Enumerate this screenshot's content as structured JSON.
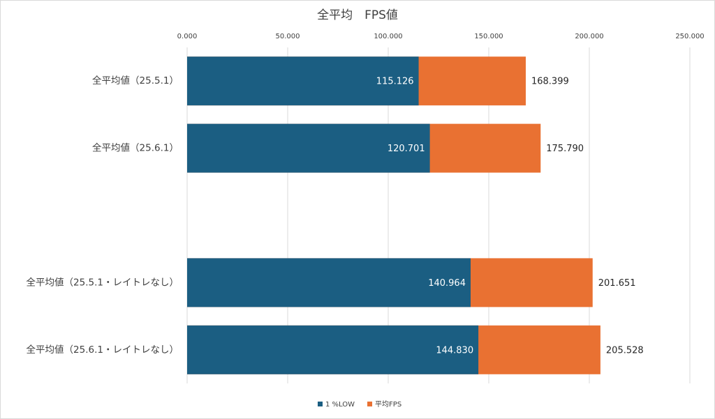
{
  "chart_data": {
    "type": "bar",
    "orientation": "horizontal",
    "layout": "overlap",
    "title": "全平均　FPS値",
    "categories": [
      "全平均値（25.5.1）",
      "全平均値（25.6.1）",
      null,
      "全平均値（25.5.1・レイトレなし）",
      "全平均値（25.6.1・レイトレなし）"
    ],
    "series": [
      {
        "name": "1 %LOW",
        "color": "#1b5e82",
        "values": [
          115.126,
          120.701,
          null,
          140.964,
          144.83
        ],
        "value_labels": [
          "115.126",
          "120.701",
          null,
          "140.964",
          "144.830"
        ]
      },
      {
        "name": "平均FPS",
        "color": "#e97132",
        "values": [
          168.399,
          175.79,
          null,
          201.651,
          205.528
        ],
        "value_labels": [
          "168.399",
          "175.790",
          null,
          "201.651",
          "205.528"
        ]
      }
    ],
    "xlim": [
      0,
      250
    ],
    "xticks": [
      {
        "value": 0,
        "label": "0.000"
      },
      {
        "value": 50,
        "label": "50.000"
      },
      {
        "value": 100,
        "label": "100.000"
      },
      {
        "value": 150,
        "label": "150.000"
      },
      {
        "value": 200,
        "label": "200.000"
      },
      {
        "value": 250,
        "label": "250.000"
      }
    ],
    "grid": true,
    "legend": "bottom"
  }
}
